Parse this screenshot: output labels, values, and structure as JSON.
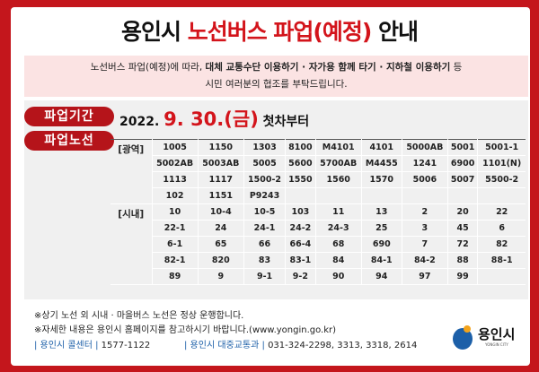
{
  "title": {
    "part1": "용인시 ",
    "part2": "노선버스 파업(예정)",
    "part3": " 안내"
  },
  "notice": {
    "t1": "노선버스 파업(예정)에 따라, ",
    "b1": "대체 교통수단 이용하기 · 자가용 함께 타기 · 지하철 이용하기",
    "t2": " 등",
    "line2": "시민 여러분의 협조를 부탁드립니다."
  },
  "period": {
    "label": "파업기간",
    "year": "2022.",
    "date": "9. 30.(금)",
    "suffix": "첫차부터"
  },
  "routes": {
    "label": "파업노선",
    "groups": [
      {
        "label": "[광역]",
        "rows": [
          [
            "1005",
            "1150",
            "1303",
            "8100",
            "M4101",
            "4101",
            "5000AB",
            "5001",
            "5001-1"
          ],
          [
            "5002AB",
            "5003AB",
            "5005",
            "5600",
            "5700AB",
            "M4455",
            "1241",
            "6900",
            "1101(N)"
          ],
          [
            "1113",
            "1117",
            "1500-2",
            "1550",
            "1560",
            "1570",
            "5006",
            "5007",
            "5500-2"
          ],
          [
            "102",
            "1151",
            "P9243",
            "",
            "",
            "",
            "",
            "",
            ""
          ]
        ]
      },
      {
        "label": "[시내]",
        "rows": [
          [
            "10",
            "10-4",
            "10-5",
            "103",
            "11",
            "13",
            "2",
            "20",
            "22"
          ],
          [
            "22-1",
            "24",
            "24-1",
            "24-2",
            "24-3",
            "25",
            "3",
            "45",
            "6"
          ],
          [
            "6-1",
            "65",
            "66",
            "66-4",
            "68",
            "690",
            "7",
            "72",
            "82"
          ],
          [
            "82-1",
            "820",
            "83",
            "83-1",
            "84",
            "84-1",
            "84-2",
            "88",
            "88-1"
          ],
          [
            "89",
            "9",
            "9-1",
            "9-2",
            "90",
            "94",
            "97",
            "99",
            ""
          ]
        ]
      }
    ]
  },
  "footer": {
    "note1": "※상기 노선 외 시내 · 마을버스 노선은 정상 운행합니다.",
    "note2": "※자세한 내용은 용인시 홈페이지를 참고하시기 바랍니다.(www.yongin.go.kr)",
    "call_label": "| 용인시 콜센터 |",
    "call_num": "1577-1122",
    "dept_label": "| 용인시 대중교통과 |",
    "dept_num": "031-324-2298, 3313, 3318, 2614"
  },
  "logo": {
    "text": "용인시",
    "sub": "YONGIN CITY"
  },
  "colors": {
    "frame": "#c4161c",
    "accent": "#d3141b",
    "pill": "#b5141a",
    "link": "#1c5fa8"
  }
}
